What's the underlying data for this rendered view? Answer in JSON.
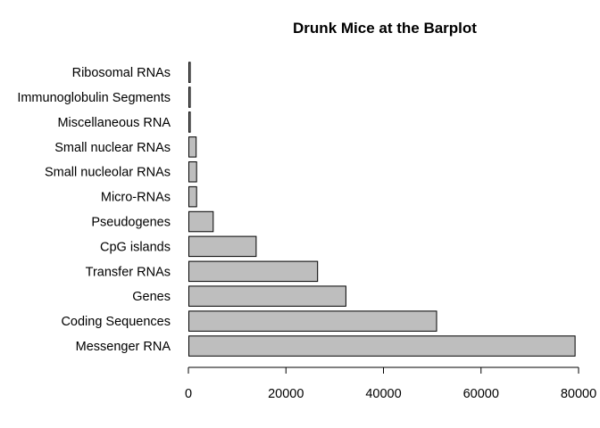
{
  "chart_data": {
    "type": "bar",
    "orientation": "horizontal",
    "title": "Drunk Mice at the Barplot",
    "xlabel": "",
    "ylabel": "",
    "categories": [
      "Messenger RNA",
      "Coding Sequences",
      "Genes",
      "Transfer RNAs",
      "CpG islands",
      "Pseudogenes",
      "Micro-RNAs",
      "Small nucleolar RNAs",
      "Small nuclear RNAs",
      "Miscellaneous RNA",
      "Immunoglobulin Segments",
      "Ribosomal RNAs"
    ],
    "values": [
      79200,
      50800,
      32200,
      26400,
      13800,
      5000,
      1600,
      1600,
      1500,
      300,
      300,
      300
    ],
    "xlim": [
      0,
      80000
    ],
    "xticks": [
      0,
      20000,
      40000,
      60000,
      80000
    ],
    "xtick_labels": [
      "0",
      "20000",
      "40000",
      "60000",
      "80000"
    ],
    "bar_color": "#bebebe",
    "grid": false
  }
}
